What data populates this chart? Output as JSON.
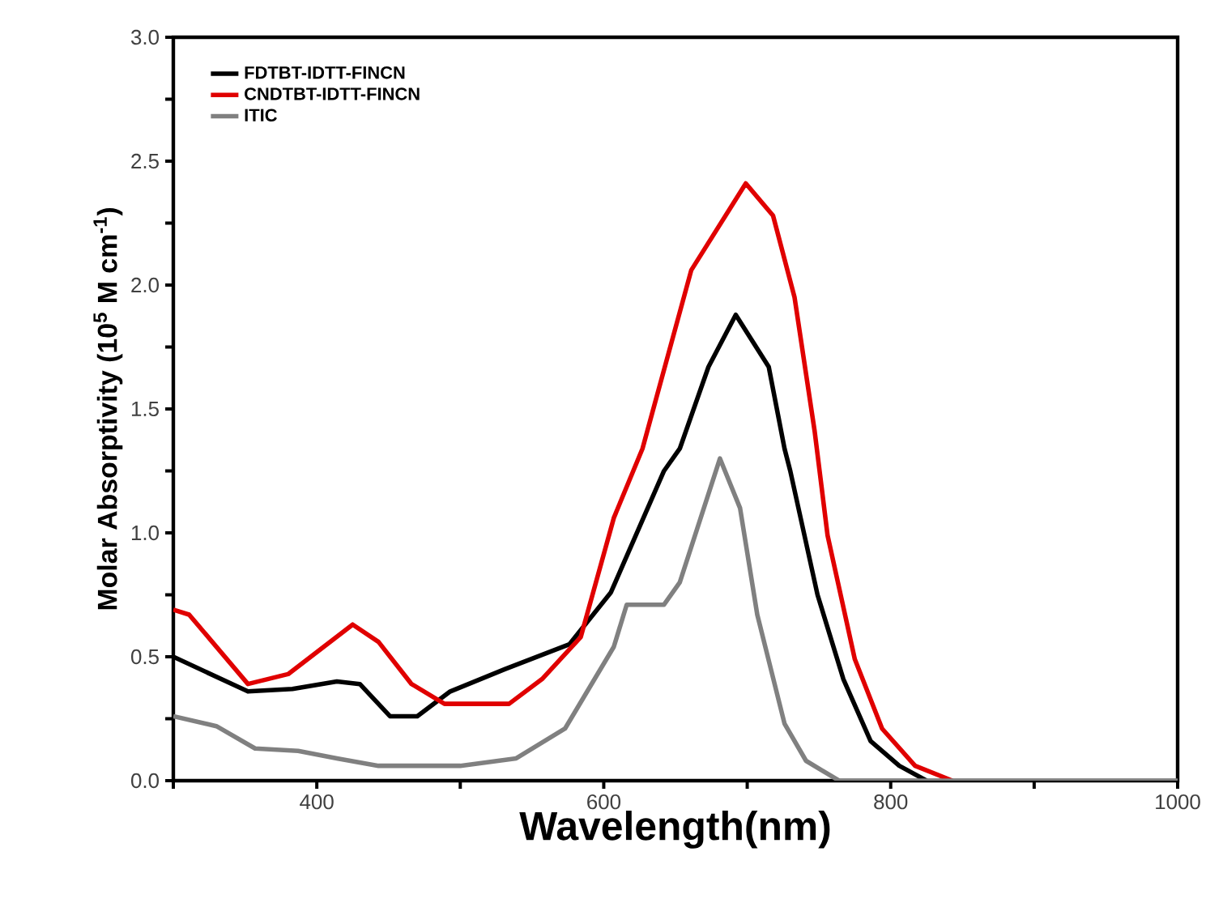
{
  "chart_data": {
    "type": "line",
    "xlabel": "Wavelength(nm)",
    "ylabel": "Molar Absorptivity (10$^{5}$ M cm$^{-1}$)",
    "xlim": [
      300,
      1000
    ],
    "ylim": [
      0,
      3
    ],
    "xticks": [
      {
        "value": 300,
        "label": null
      },
      400,
      {
        "value": 500,
        "label": null
      },
      600,
      {
        "value": 700,
        "label": null
      },
      800,
      {
        "value": 900,
        "label": null
      },
      1000
    ],
    "yticks": [
      {
        "value": 0,
        "label": "0.0"
      },
      {
        "value": 0.25,
        "label": null
      },
      {
        "value": 0.5,
        "label": "0.5"
      },
      {
        "value": 0.75,
        "label": null
      },
      {
        "value": 1,
        "label": "1.0"
      },
      {
        "value": 1.25,
        "label": null
      },
      {
        "value": 1.5,
        "label": "1.5"
      },
      {
        "value": 1.75,
        "label": null
      },
      {
        "value": 2,
        "label": "2.0"
      },
      {
        "value": 2.25,
        "label": null
      },
      {
        "value": 2.5,
        "label": "2.5"
      },
      {
        "value": 2.75,
        "label": null
      },
      {
        "value": 3,
        "label": "3.0"
      }
    ],
    "legend": "top left",
    "grid": false,
    "marker": "none",
    "line_style": "solid",
    "series": [
      {
        "name": "FDTBT-IDTT-FINCN",
        "color": "#000000",
        "x": [
          300,
          352,
          383,
          414,
          430,
          451,
          470,
          493,
          531,
          576,
          605,
          642,
          653,
          673,
          692,
          715,
          726,
          730,
          749,
          767,
          786,
          806,
          825
        ],
        "values": [
          0.5,
          0.36,
          0.37,
          0.4,
          0.39,
          0.26,
          0.26,
          0.36,
          0.45,
          0.55,
          0.76,
          1.25,
          1.34,
          1.67,
          1.88,
          1.67,
          1.34,
          1.25,
          0.75,
          0.41,
          0.16,
          0.06,
          0
        ]
      },
      {
        "name": "CNDTBT-IDTT-FINCN",
        "color": "#e00000",
        "x": [
          300,
          311,
          352,
          380,
          425,
          443,
          466,
          489,
          534,
          557,
          584,
          607,
          627,
          661,
          699,
          718,
          733,
          747,
          756,
          775,
          794,
          817,
          843
        ],
        "values": [
          0.69,
          0.67,
          0.39,
          0.43,
          0.63,
          0.56,
          0.39,
          0.31,
          0.31,
          0.41,
          0.58,
          1.06,
          1.34,
          2.06,
          2.41,
          2.28,
          1.95,
          1.41,
          0.99,
          0.49,
          0.21,
          0.06,
          0
        ]
      },
      {
        "name": "ITIC",
        "color": "#808080",
        "x": [
          300,
          330,
          357,
          387,
          414,
          443,
          500,
          539,
          573,
          607,
          616,
          642,
          653,
          681,
          695,
          707,
          726,
          741,
          764,
          1000
        ],
        "values": [
          0.26,
          0.22,
          0.13,
          0.12,
          0.09,
          0.06,
          0.06,
          0.09,
          0.21,
          0.54,
          0.71,
          0.71,
          0.8,
          1.3,
          1.1,
          0.67,
          0.23,
          0.08,
          0,
          0
        ]
      }
    ]
  }
}
